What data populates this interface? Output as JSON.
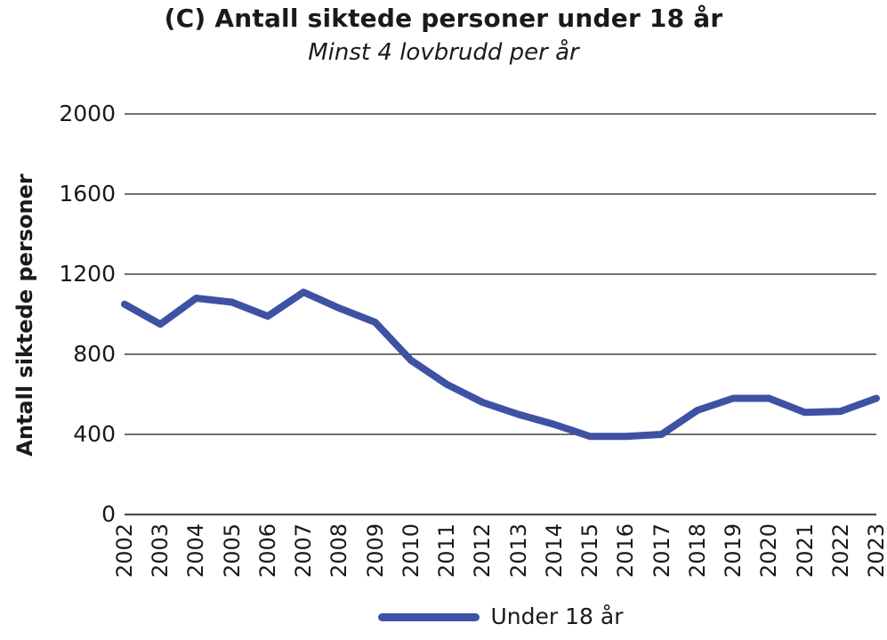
{
  "header": {
    "title": "(C) Antall siktede personer under 18 år",
    "subtitle": "Minst 4 lovbrudd per år"
  },
  "colors": {
    "line": "#3F51A3",
    "grid": "#1a1a1a",
    "zero_axis": "#4d4d4d",
    "text": "#1a1a1a"
  },
  "legend": {
    "label": "Under 18 år"
  },
  "chart_data": {
    "type": "line",
    "title": "(C) Antall siktede personer under 18 år",
    "subtitle": "Minst 4 lovbrudd per år",
    "xlabel": "",
    "ylabel": "Antall siktede personer",
    "categories": [
      "2002",
      "2003",
      "2004",
      "2005",
      "2006",
      "2007",
      "2008",
      "2009",
      "2010",
      "2011",
      "2012",
      "2013",
      "2014",
      "2015",
      "2016",
      "2017",
      "2018",
      "2019",
      "2020",
      "2021",
      "2022",
      "2023"
    ],
    "series": [
      {
        "name": "Under 18 år",
        "color": "#3F51A3",
        "values": [
          1050,
          950,
          1080,
          1060,
          990,
          1110,
          1030,
          960,
          770,
          650,
          560,
          500,
          450,
          390,
          390,
          400,
          520,
          580,
          580,
          510,
          515,
          580
        ]
      }
    ],
    "ylim": [
      0,
      2000
    ],
    "yticks": [
      0,
      400,
      800,
      1200,
      1600,
      2000
    ],
    "grid": "horizontal",
    "legend_position": "bottom"
  }
}
